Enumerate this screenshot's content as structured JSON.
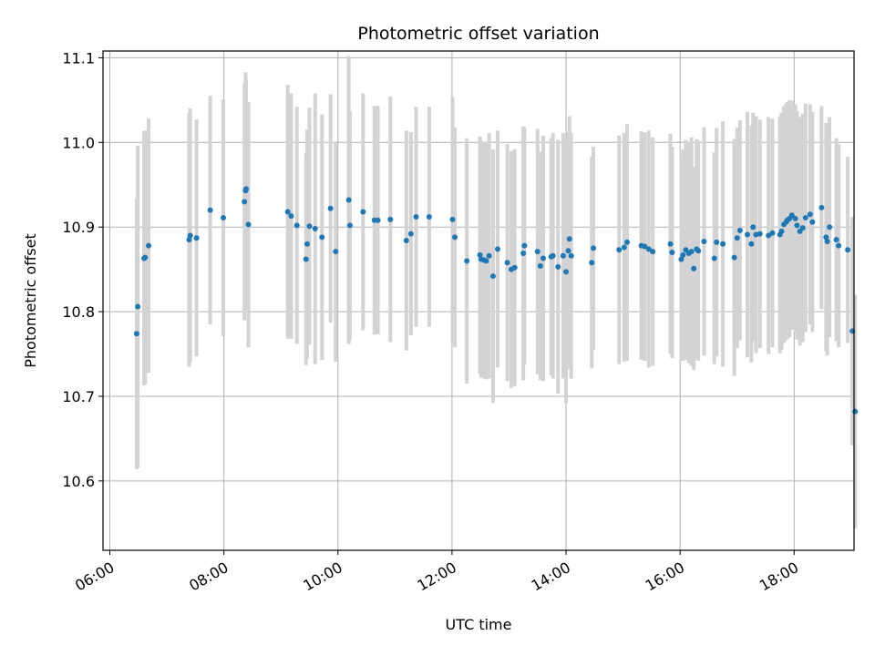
{
  "chart_data": {
    "type": "scatter",
    "title": "Photometric offset variation",
    "xlabel": "UTC time",
    "ylabel": "Photometric offset",
    "x_unit": "hour of day (UTC)",
    "xlim": [
      5.88,
      19.05
    ],
    "ylim": [
      10.518,
      11.108
    ],
    "xticks": [
      6,
      8,
      10,
      12,
      14,
      16,
      18
    ],
    "xtick_labels": [
      "06:00",
      "08:00",
      "10:00",
      "12:00",
      "14:00",
      "16:00",
      "18:00"
    ],
    "yticks": [
      10.6,
      10.7,
      10.8,
      10.9,
      11.0,
      11.1
    ],
    "ytick_labels": [
      "10.6",
      "10.7",
      "10.8",
      "10.9",
      "11.0",
      "11.1"
    ],
    "grid": true,
    "colors": {
      "points": "#1f77b4",
      "errorbars": "#d3d3d3",
      "grid": "#b0b0b0"
    },
    "series": [
      {
        "points": [
          [
            6.47,
            10.774,
            0.16
          ],
          [
            6.49,
            10.806,
            0.19
          ],
          [
            6.6,
            10.863,
            0.15
          ],
          [
            6.62,
            10.864,
            0.15
          ],
          [
            6.68,
            10.878,
            0.15
          ],
          [
            7.39,
            10.885,
            0.15
          ],
          [
            7.41,
            10.89,
            0.15
          ],
          [
            7.52,
            10.887,
            0.14
          ],
          [
            7.76,
            10.92,
            0.135
          ],
          [
            7.99,
            10.911,
            0.14
          ],
          [
            8.36,
            10.93,
            0.14
          ],
          [
            8.38,
            10.943,
            0.14
          ],
          [
            8.39,
            10.945,
            0.13
          ],
          [
            8.43,
            10.903,
            0.145
          ],
          [
            9.12,
            10.918,
            0.15
          ],
          [
            9.18,
            10.913,
            0.145
          ],
          [
            9.28,
            10.902,
            0.14
          ],
          [
            9.44,
            10.862,
            0.125
          ],
          [
            9.46,
            10.88,
            0.135
          ],
          [
            9.5,
            10.901,
            0.14
          ],
          [
            9.6,
            10.898,
            0.16
          ],
          [
            9.72,
            10.888,
            0.145
          ],
          [
            9.87,
            10.922,
            0.135
          ],
          [
            9.96,
            10.871,
            0.13
          ],
          [
            10.19,
            10.932,
            0.17
          ],
          [
            10.21,
            10.902,
            0.135
          ],
          [
            10.44,
            10.918,
            0.14
          ],
          [
            10.64,
            10.908,
            0.135
          ],
          [
            10.7,
            10.908,
            0.135
          ],
          [
            10.92,
            10.909,
            0.145
          ],
          [
            11.2,
            10.884,
            0.13
          ],
          [
            11.28,
            10.892,
            0.12
          ],
          [
            11.37,
            10.912,
            0.13
          ],
          [
            11.6,
            10.912,
            0.13
          ],
          [
            12.01,
            10.909,
            0.145
          ],
          [
            12.05,
            10.888,
            0.13
          ],
          [
            12.26,
            10.86,
            0.145
          ],
          [
            12.49,
            10.867,
            0.14
          ],
          [
            12.51,
            10.862,
            0.14
          ],
          [
            12.56,
            10.861,
            0.14
          ],
          [
            12.6,
            10.86,
            0.14
          ],
          [
            12.65,
            10.866,
            0.145
          ],
          [
            12.72,
            10.842,
            0.15
          ],
          [
            12.8,
            10.874,
            0.14
          ],
          [
            12.97,
            10.858,
            0.14
          ],
          [
            13.04,
            10.85,
            0.14
          ],
          [
            13.1,
            10.852,
            0.14
          ],
          [
            13.25,
            10.869,
            0.15
          ],
          [
            13.27,
            10.878,
            0.14
          ],
          [
            13.5,
            10.871,
            0.145
          ],
          [
            13.55,
            10.854,
            0.135
          ],
          [
            13.6,
            10.863,
            0.145
          ],
          [
            13.74,
            10.865,
            0.14
          ],
          [
            13.77,
            10.866,
            0.145
          ],
          [
            13.86,
            10.853,
            0.15
          ],
          [
            13.95,
            10.866,
            0.145
          ],
          [
            14.0,
            10.847,
            0.155
          ],
          [
            14.04,
            10.872,
            0.14
          ],
          [
            14.06,
            10.886,
            0.145
          ],
          [
            14.09,
            10.866,
            0.145
          ],
          [
            14.45,
            10.858,
            0.125
          ],
          [
            14.48,
            10.875,
            0.12
          ],
          [
            14.93,
            10.873,
            0.135
          ],
          [
            15.02,
            10.876,
            0.135
          ],
          [
            15.07,
            10.882,
            0.14
          ],
          [
            15.32,
            10.878,
            0.135
          ],
          [
            15.38,
            10.877,
            0.135
          ],
          [
            15.45,
            10.874,
            0.14
          ],
          [
            15.52,
            10.871,
            0.135
          ],
          [
            15.83,
            10.88,
            0.13
          ],
          [
            15.86,
            10.87,
            0.125
          ],
          [
            16.02,
            10.862,
            0.12
          ],
          [
            16.05,
            10.867,
            0.125
          ],
          [
            16.1,
            10.873,
            0.13
          ],
          [
            16.15,
            10.869,
            0.13
          ],
          [
            16.2,
            10.871,
            0.135
          ],
          [
            16.24,
            10.851,
            0.12
          ],
          [
            16.29,
            10.874,
            0.13
          ],
          [
            16.32,
            10.872,
            0.13
          ],
          [
            16.42,
            10.883,
            0.135
          ],
          [
            16.6,
            10.863,
            0.125
          ],
          [
            16.64,
            10.882,
            0.135
          ],
          [
            16.75,
            10.88,
            0.145
          ],
          [
            16.95,
            10.864,
            0.14
          ],
          [
            17.0,
            10.887,
            0.13
          ],
          [
            17.05,
            10.896,
            0.13
          ],
          [
            17.18,
            10.891,
            0.145
          ],
          [
            17.25,
            10.88,
            0.14
          ],
          [
            17.28,
            10.9,
            0.135
          ],
          [
            17.33,
            10.891,
            0.14
          ],
          [
            17.4,
            10.892,
            0.135
          ],
          [
            17.55,
            10.89,
            0.14
          ],
          [
            17.62,
            10.893,
            0.135
          ],
          [
            17.75,
            10.891,
            0.14
          ],
          [
            17.78,
            10.895,
            0.14
          ],
          [
            17.82,
            10.903,
            0.14
          ],
          [
            17.86,
            10.906,
            0.14
          ],
          [
            17.88,
            10.908,
            0.14
          ],
          [
            17.92,
            10.91,
            0.14
          ],
          [
            17.96,
            10.914,
            0.135
          ],
          [
            18.02,
            10.91,
            0.135
          ],
          [
            18.05,
            10.902,
            0.135
          ],
          [
            18.1,
            10.895,
            0.135
          ],
          [
            18.15,
            10.899,
            0.135
          ],
          [
            18.2,
            10.911,
            0.135
          ],
          [
            18.28,
            10.915,
            0.13
          ],
          [
            18.32,
            10.906,
            0.13
          ],
          [
            18.48,
            10.923,
            0.12
          ],
          [
            18.56,
            10.888,
            0.135
          ],
          [
            18.58,
            10.883,
            0.135
          ],
          [
            18.62,
            10.9,
            0.13
          ],
          [
            18.74,
            10.885,
            0.12
          ],
          [
            18.78,
            10.878,
            0.12
          ],
          [
            18.94,
            10.873,
            0.11
          ],
          [
            19.02,
            10.777,
            0.135
          ],
          [
            19.07,
            10.682,
            0.138
          ]
        ]
      }
    ]
  }
}
